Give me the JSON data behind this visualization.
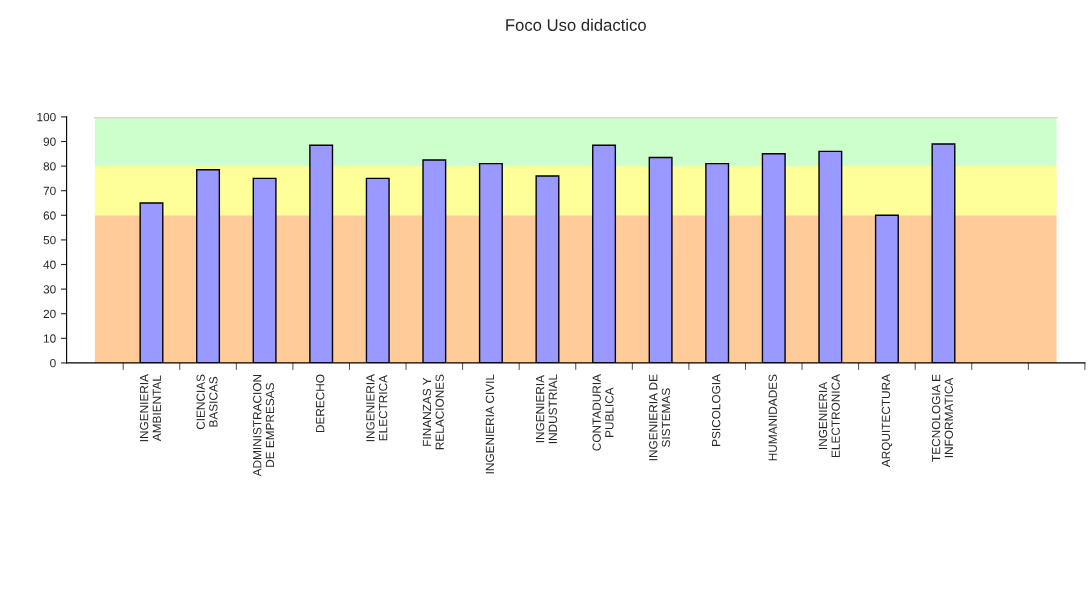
{
  "chart_data": {
    "type": "bar",
    "title": "Foco Uso didactico",
    "categories": [
      null,
      "INGENIERIA\nAMBIENTAL",
      "CIENCIAS\nBASICAS",
      "ADMINISTRACION\nDE EMPRESAS",
      "DERECHO",
      "INGENIERIA\nELECTRICA",
      "FINANZAS Y\nRELACIONES",
      "INGENIERIA CIVIL",
      "INGENIERIA\nINDUSTRIAL",
      "CONTADURIA\nPUBLICA",
      "INGENIERIA DE\nSISTEMAS",
      "PSICOLOGIA",
      "HUMANIDADES",
      "INGENIERIA\nELECTRONICA",
      "ARQUITECTURA",
      "TECNOLOGIA E\nINFORMATICA",
      null,
      null
    ],
    "values": [
      null,
      65,
      78.5,
      75,
      88.5,
      75,
      82.5,
      81,
      76,
      88.5,
      83.5,
      81,
      85,
      86,
      60,
      89,
      null,
      null
    ],
    "color": "#9999ff",
    "ylim": [
      0,
      100
    ],
    "yticks": [
      0,
      10,
      20,
      30,
      40,
      50,
      60,
      70,
      80,
      90,
      100
    ],
    "bands": [
      {
        "axis": "y",
        "from": 0,
        "to": 60,
        "color": "#ffcc99"
      },
      {
        "axis": "y",
        "from": 60,
        "to": 80,
        "color": "#ffff99"
      },
      {
        "axis": "y",
        "from": 80,
        "to": 99.5,
        "color": "#ccffcc"
      }
    ],
    "ref_lines": [
      {
        "axis": "y",
        "value": 100,
        "color": "#ffcc99"
      }
    ],
    "grid": false,
    "legend": false
  }
}
